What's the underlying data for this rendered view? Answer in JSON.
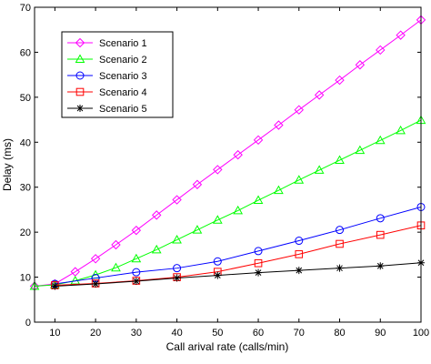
{
  "chart_data": {
    "type": "line",
    "title": "",
    "xlabel": "Call arival rate (calls/min)",
    "ylabel": "Delay (ms)",
    "xlim": [
      5,
      100
    ],
    "ylim": [
      0,
      70
    ],
    "xticks": [
      10,
      20,
      30,
      40,
      50,
      60,
      70,
      80,
      90,
      100
    ],
    "yticks": [
      0,
      10,
      20,
      30,
      40,
      50,
      60,
      70
    ],
    "grid": false,
    "legend_position": "top-left",
    "series": [
      {
        "name": "Scenario 1",
        "color": "#ff00ff",
        "marker": "diamond",
        "x": [
          5,
          10,
          15,
          20,
          25,
          30,
          35,
          40,
          45,
          50,
          55,
          60,
          65,
          70,
          75,
          80,
          85,
          90,
          95,
          100
        ],
        "y": [
          8.0,
          8.5,
          11.2,
          14.1,
          17.2,
          20.4,
          23.8,
          27.2,
          30.6,
          33.9,
          37.2,
          40.5,
          43.8,
          47.2,
          50.5,
          53.8,
          57.2,
          60.5,
          63.8,
          67.2
        ]
      },
      {
        "name": "Scenario 2",
        "color": "#00ff00",
        "marker": "triangle",
        "x": [
          5,
          10,
          15,
          20,
          25,
          30,
          35,
          40,
          45,
          50,
          55,
          60,
          65,
          70,
          75,
          80,
          85,
          90,
          95,
          100
        ],
        "y": [
          8.0,
          8.3,
          9.2,
          10.5,
          12.1,
          14.1,
          16.1,
          18.3,
          20.5,
          22.7,
          24.8,
          27.1,
          29.3,
          31.6,
          33.8,
          36.0,
          38.2,
          40.4,
          42.6,
          44.9
        ]
      },
      {
        "name": "Scenario 3",
        "color": "#0000ff",
        "marker": "circle",
        "x": [
          10,
          20,
          30,
          40,
          50,
          60,
          70,
          80,
          90,
          100
        ],
        "y": [
          8.5,
          9.8,
          11.1,
          12.0,
          13.5,
          15.8,
          18.1,
          20.5,
          23.1,
          25.6
        ]
      },
      {
        "name": "Scenario 4",
        "color": "#ff0000",
        "marker": "square",
        "x": [
          10,
          20,
          30,
          40,
          50,
          60,
          70,
          80,
          90,
          100
        ],
        "y": [
          8.2,
          8.6,
          9.2,
          10.0,
          11.2,
          13.1,
          15.1,
          17.4,
          19.4,
          21.5
        ]
      },
      {
        "name": "Scenario 5",
        "color": "#000000",
        "marker": "star",
        "x": [
          10,
          20,
          30,
          40,
          50,
          60,
          70,
          80,
          90,
          100
        ],
        "y": [
          8.0,
          8.5,
          9.1,
          9.8,
          10.4,
          11.0,
          11.5,
          12.0,
          12.5,
          13.2
        ]
      }
    ]
  }
}
